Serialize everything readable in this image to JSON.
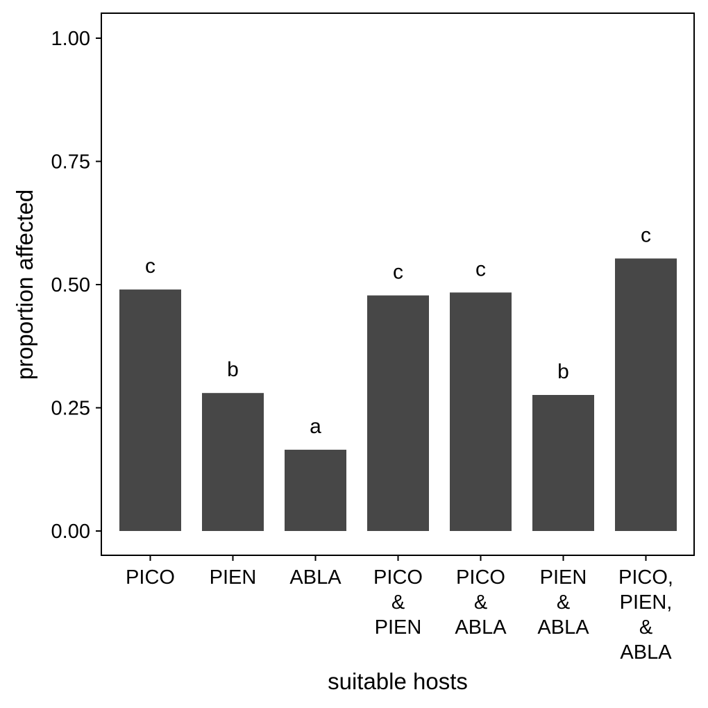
{
  "chart_data": {
    "type": "bar",
    "xlabel": "suitable hosts",
    "ylabel": "proportion affected",
    "ylim": [
      0,
      1.05
    ],
    "yticks": [
      {
        "value": 0.0,
        "label": "0.00"
      },
      {
        "value": 0.25,
        "label": "0.25"
      },
      {
        "value": 0.5,
        "label": "0.50"
      },
      {
        "value": 0.75,
        "label": "0.75"
      },
      {
        "value": 1.0,
        "label": "1.00"
      }
    ],
    "categories": [
      [
        "PICO"
      ],
      [
        "PIEN"
      ],
      [
        "ABLA"
      ],
      [
        "PICO",
        "&",
        "PIEN"
      ],
      [
        "PICO",
        "&",
        "ABLA"
      ],
      [
        "PIEN",
        "&",
        "ABLA"
      ],
      [
        "PICO,",
        "PIEN,",
        "&",
        "ABLA"
      ]
    ],
    "values": [
      0.49,
      0.28,
      0.165,
      0.478,
      0.484,
      0.276,
      0.553
    ],
    "significance_labels": [
      "c",
      "b",
      "a",
      "c",
      "c",
      "b",
      "c"
    ],
    "bar_color": "#474747",
    "grid": false,
    "legend": "none"
  }
}
